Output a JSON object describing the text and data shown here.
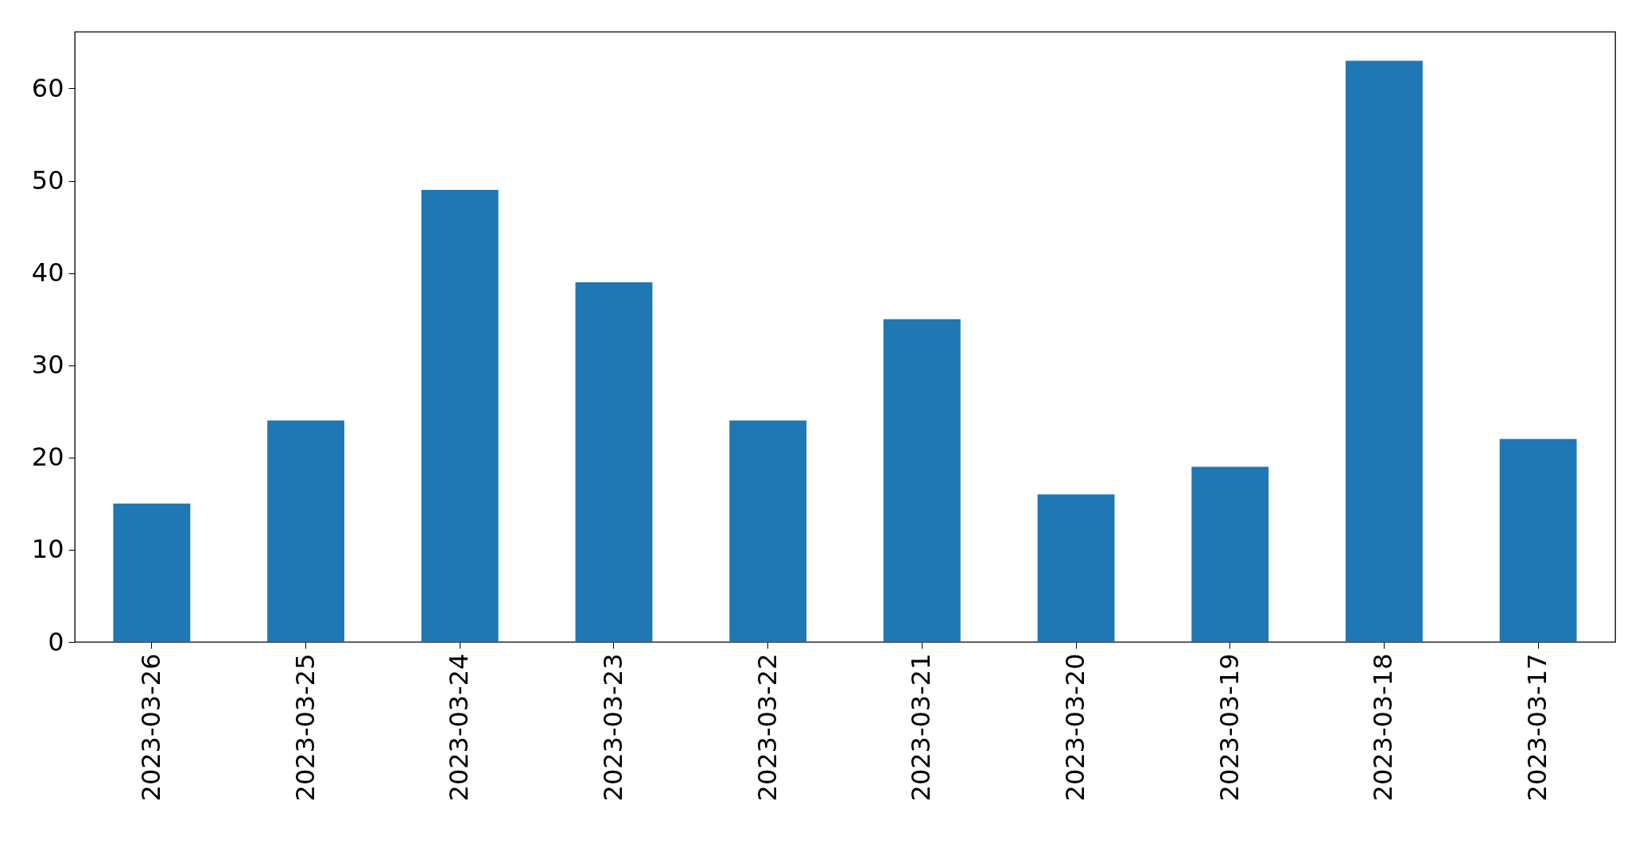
{
  "chart_data": {
    "type": "bar",
    "categories": [
      "2023-03-26",
      "2023-03-25",
      "2023-03-24",
      "2023-03-23",
      "2023-03-22",
      "2023-03-21",
      "2023-03-20",
      "2023-03-19",
      "2023-03-18",
      "2023-03-17"
    ],
    "values": [
      15,
      24,
      49,
      39,
      24,
      35,
      16,
      19,
      63,
      22
    ],
    "color": "#1f77b4",
    "ylim": [
      0,
      66.15
    ],
    "yticks": [
      0,
      10,
      20,
      30,
      40,
      50,
      60
    ],
    "grid": false
  }
}
